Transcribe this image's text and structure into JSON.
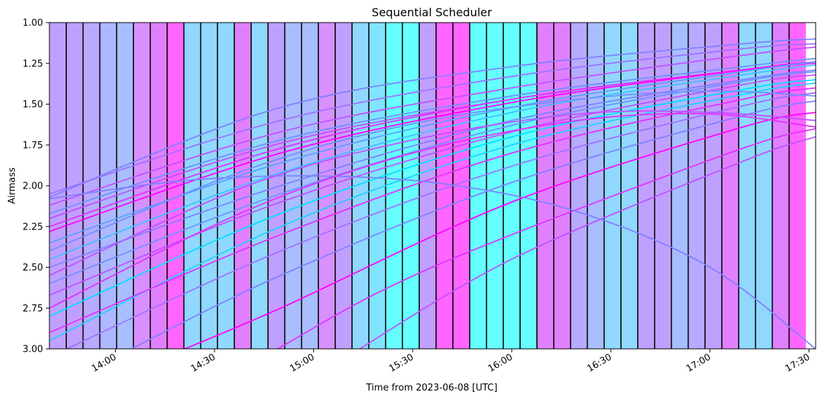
{
  "chart_data": {
    "type": "line",
    "title": "Sequential Scheduler",
    "xlabel": "Time from 2023-06-08 [UTC]",
    "ylabel": "Airmass",
    "x_range_minutes_utc": [
      820,
      1052
    ],
    "ylim": [
      1.0,
      3.0
    ],
    "y_inverted": true,
    "y_ticks": [
      1.0,
      1.25,
      1.5,
      1.75,
      2.0,
      2.25,
      2.5,
      2.75,
      3.0
    ],
    "y_tick_labels": [
      "1.00",
      "1.25",
      "1.50",
      "1.75",
      "2.00",
      "2.25",
      "2.50",
      "2.75",
      "3.00"
    ],
    "x_tick_labels": [
      "14:00",
      "14:30",
      "15:00",
      "15:30",
      "16:00",
      "16:30",
      "17:00",
      "17:30"
    ],
    "x_tick_minutes": [
      840,
      870,
      900,
      930,
      960,
      990,
      1020,
      1050
    ],
    "colormap": "cool",
    "observation_blocks": {
      "start_minute": 820,
      "block_minutes": 5.09,
      "colors": [
        "#c0a0ff",
        "#c0a0ff",
        "#b8aaff",
        "#aeb8ff",
        "#a8beff",
        "#d890ff",
        "#e080ff",
        "#ff66ff",
        "#90d8ff",
        "#90d8ff",
        "#90d8ff",
        "#e080ff",
        "#90d8ff",
        "#c0a0ff",
        "#a8beff",
        "#a8beff",
        "#d890ff",
        "#c0a0ff",
        "#90d8ff",
        "#80e4ff",
        "#66ffff",
        "#66ffff",
        "#c0a0ff",
        "#ff66ff",
        "#ff66ff",
        "#66ffff",
        "#66ffff",
        "#66ffff",
        "#66ffff",
        "#e080ff",
        "#e080ff",
        "#b8aaff",
        "#a8beff",
        "#90d8ff",
        "#90d8ff",
        "#c0a0ff",
        "#c0a0ff",
        "#a8beff",
        "#b8aaff",
        "#c0a0ff",
        "#e080ff",
        "#90d8ff",
        "#90d8ff",
        "#e080ff",
        "#ff66ff"
      ],
      "bordered_count": 44
    },
    "series": [
      {
        "color": "#8080ff",
        "points": [
          [
            820,
            2.07
          ],
          [
            890,
            1.52
          ],
          [
            960,
            1.27
          ],
          [
            1030,
            1.13
          ],
          [
            1052,
            1.1
          ]
        ]
      },
      {
        "color": "#a070ff",
        "points": [
          [
            820,
            2.05
          ],
          [
            890,
            1.6
          ],
          [
            960,
            1.33
          ],
          [
            1030,
            1.16
          ],
          [
            1052,
            1.13
          ]
        ]
      },
      {
        "color": "#c050ff",
        "points": [
          [
            820,
            2.12
          ],
          [
            890,
            1.67
          ],
          [
            960,
            1.4
          ],
          [
            1030,
            1.2
          ],
          [
            1052,
            1.15
          ]
        ]
      },
      {
        "color": "#7090ff",
        "points": [
          [
            820,
            2.17
          ],
          [
            890,
            1.72
          ],
          [
            960,
            1.45
          ],
          [
            1030,
            1.27
          ],
          [
            1052,
            1.22
          ]
        ]
      },
      {
        "color": "#c050ff",
        "points": [
          [
            820,
            2.2
          ],
          [
            890,
            1.74
          ],
          [
            960,
            1.47
          ],
          [
            1030,
            1.29
          ],
          [
            1052,
            1.25
          ]
        ]
      },
      {
        "color": "#e030ff",
        "points": [
          [
            820,
            2.25
          ],
          [
            890,
            1.77
          ],
          [
            960,
            1.47
          ],
          [
            1030,
            1.29
          ],
          [
            1052,
            1.25
          ]
        ]
      },
      {
        "color": "#ff00ff",
        "points": [
          [
            820,
            2.28
          ],
          [
            890,
            1.8
          ],
          [
            960,
            1.49
          ],
          [
            1030,
            1.29
          ],
          [
            1052,
            1.24
          ]
        ]
      },
      {
        "color": "#5aa0ff",
        "points": [
          [
            820,
            2.35
          ],
          [
            890,
            1.86
          ],
          [
            960,
            1.52
          ],
          [
            1030,
            1.3
          ],
          [
            1052,
            1.24
          ]
        ]
      },
      {
        "color": "#40c0ff",
        "points": [
          [
            820,
            2.45
          ],
          [
            890,
            1.92
          ],
          [
            960,
            1.55
          ],
          [
            1030,
            1.32
          ],
          [
            1052,
            1.26
          ]
        ]
      },
      {
        "color": "#8080ff",
        "points": [
          [
            820,
            2.5
          ],
          [
            890,
            2.0
          ],
          [
            960,
            1.6
          ],
          [
            1030,
            1.35
          ],
          [
            1052,
            1.29
          ]
        ]
      },
      {
        "color": "#7090ff",
        "points": [
          [
            820,
            2.6
          ],
          [
            890,
            2.05
          ],
          [
            960,
            1.63
          ],
          [
            1030,
            1.36
          ],
          [
            1052,
            1.3
          ]
        ]
      },
      {
        "color": "#c050ff",
        "points": [
          [
            820,
            2.67
          ],
          [
            890,
            2.1
          ],
          [
            960,
            1.67
          ],
          [
            1030,
            1.38
          ],
          [
            1052,
            1.32
          ]
        ]
      },
      {
        "color": "#00e0ff",
        "points": [
          [
            820,
            2.8
          ],
          [
            890,
            2.17
          ],
          [
            960,
            1.7
          ],
          [
            1030,
            1.41
          ],
          [
            1052,
            1.35
          ]
        ]
      },
      {
        "color": "#20d0ff",
        "points": [
          [
            820,
            2.95
          ],
          [
            890,
            2.25
          ],
          [
            960,
            1.75
          ],
          [
            1030,
            1.44
          ],
          [
            1052,
            1.37
          ]
        ]
      },
      {
        "color": "#e030ff",
        "points": [
          [
            820,
            2.9
          ],
          [
            890,
            2.3
          ],
          [
            960,
            1.8
          ],
          [
            1030,
            1.47
          ],
          [
            1052,
            1.4
          ]
        ]
      },
      {
        "color": "#a070ff",
        "points": [
          [
            820,
            3.05
          ],
          [
            890,
            2.4
          ],
          [
            960,
            1.88
          ],
          [
            1030,
            1.51
          ],
          [
            1052,
            1.43
          ]
        ]
      },
      {
        "color": "#8080ff",
        "points": [
          [
            840,
            3.05
          ],
          [
            890,
            2.55
          ],
          [
            960,
            1.98
          ],
          [
            1030,
            1.57
          ],
          [
            1052,
            1.48
          ]
        ]
      },
      {
        "color": "#ff00ff",
        "points": [
          [
            855,
            3.05
          ],
          [
            890,
            2.75
          ],
          [
            960,
            2.1
          ],
          [
            1030,
            1.64
          ],
          [
            1052,
            1.55
          ]
        ]
      },
      {
        "color": "#e030ff",
        "points": [
          [
            885,
            3.05
          ],
          [
            920,
            2.65
          ],
          [
            960,
            2.3
          ],
          [
            1030,
            1.77
          ],
          [
            1052,
            1.65
          ]
        ]
      },
      {
        "color": "#c050ff",
        "points": [
          [
            910,
            3.05
          ],
          [
            960,
            2.45
          ],
          [
            1030,
            1.85
          ],
          [
            1052,
            1.7
          ]
        ]
      },
      {
        "color": "#8080ff",
        "points": [
          [
            820,
            2.08
          ],
          [
            860,
            1.97
          ],
          [
            900,
            1.94
          ],
          [
            940,
            1.99
          ],
          [
            980,
            2.16
          ],
          [
            1020,
            2.5
          ],
          [
            1052,
            3.0
          ]
        ]
      },
      {
        "color": "#c050ff",
        "points": [
          [
            820,
            2.55
          ],
          [
            880,
            2.0
          ],
          [
            930,
            1.72
          ],
          [
            980,
            1.56
          ],
          [
            1020,
            1.55
          ],
          [
            1052,
            1.6
          ]
        ]
      },
      {
        "color": "#e030ff",
        "points": [
          [
            820,
            2.75
          ],
          [
            880,
            2.15
          ],
          [
            930,
            1.8
          ],
          [
            980,
            1.6
          ],
          [
            1020,
            1.56
          ],
          [
            1052,
            1.64
          ]
        ]
      },
      {
        "color": "#7090ff",
        "points": [
          [
            820,
            2.4
          ],
          [
            880,
            1.9
          ],
          [
            930,
            1.62
          ],
          [
            980,
            1.47
          ],
          [
            1020,
            1.42
          ],
          [
            1052,
            1.45
          ]
        ]
      }
    ]
  }
}
